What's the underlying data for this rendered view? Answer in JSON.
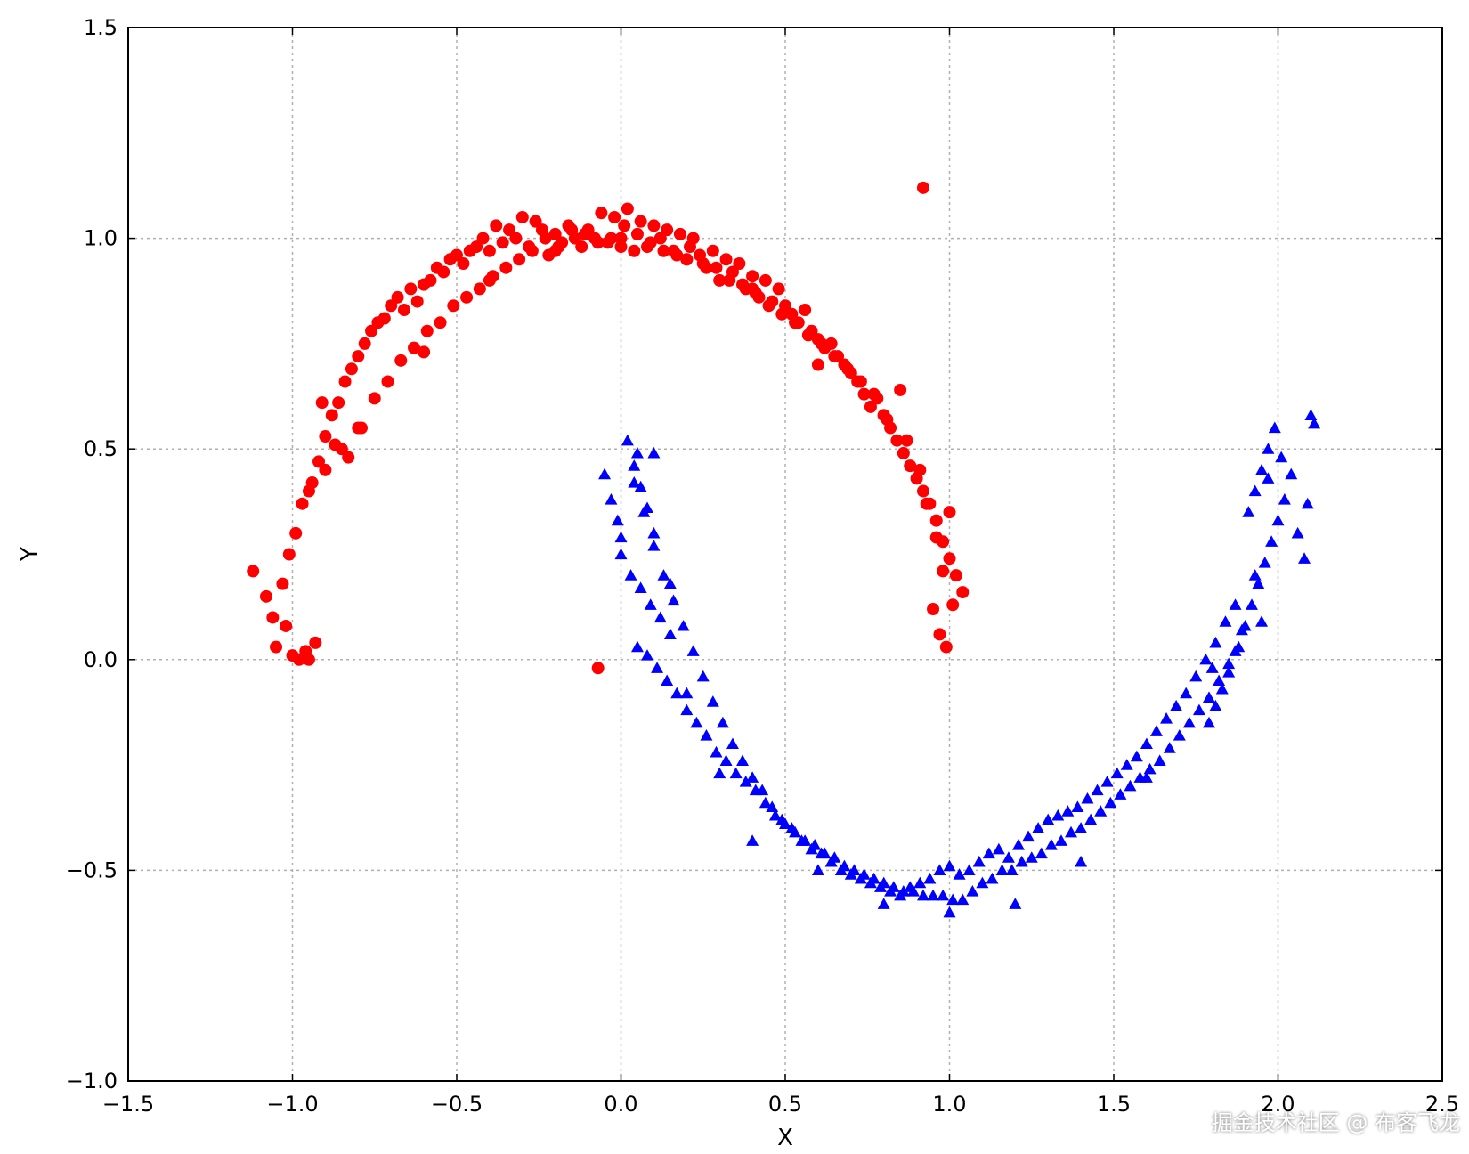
{
  "chart_data": {
    "type": "scatter",
    "xlabel": "X",
    "ylabel": "Y",
    "xlim": [
      -1.5,
      2.5
    ],
    "ylim": [
      -1.0,
      1.5
    ],
    "xticks": [
      -1.5,
      -1.0,
      -0.5,
      0.0,
      0.5,
      1.0,
      1.5,
      2.0,
      2.5
    ],
    "yticks": [
      -1.0,
      -0.5,
      0.0,
      0.5,
      1.0,
      1.5
    ],
    "xtick_labels": [
      "−1.5",
      "−1.0",
      "−0.5",
      "0.0",
      "0.5",
      "1.0",
      "1.5",
      "2.0",
      "2.5"
    ],
    "ytick_labels": [
      "−1.0",
      "−0.5",
      "0.0",
      "0.5",
      "1.0",
      "1.5"
    ],
    "grid": true,
    "series": [
      {
        "color": "#ff0000",
        "marker": "circle",
        "x": [
          -1.12,
          -1.08,
          -1.05,
          -1.02,
          -1.0,
          -0.98,
          -0.96,
          -0.95,
          -0.93,
          -1.06,
          -1.03,
          -1.01,
          -0.99,
          -0.97,
          -0.94,
          -0.92,
          -0.9,
          -0.88,
          -0.86,
          -0.84,
          -0.82,
          -0.8,
          -0.78,
          -0.76,
          -0.74,
          -0.72,
          -0.7,
          -0.68,
          -0.66,
          -0.64,
          -0.62,
          -0.6,
          -0.58,
          -0.56,
          -0.54,
          -0.52,
          -0.5,
          -0.48,
          -0.46,
          -0.44,
          -0.42,
          -0.4,
          -0.38,
          -0.36,
          -0.34,
          -0.32,
          -0.3,
          -0.28,
          -0.26,
          -0.24,
          -0.22,
          -0.2,
          -0.18,
          -0.16,
          -0.14,
          -0.12,
          -0.1,
          -0.08,
          -0.06,
          -0.04,
          -0.02,
          0.0,
          0.02,
          0.04,
          0.06,
          0.08,
          0.1,
          0.12,
          0.14,
          0.16,
          0.18,
          0.2,
          0.22,
          0.24,
          0.26,
          0.28,
          0.3,
          0.32,
          0.34,
          0.36,
          0.38,
          0.4,
          0.42,
          0.44,
          0.46,
          0.48,
          0.5,
          0.52,
          0.54,
          0.56,
          0.58,
          0.6,
          0.62,
          0.64,
          0.66,
          0.68,
          0.7,
          0.72,
          0.74,
          0.76,
          0.78,
          0.8,
          0.82,
          0.84,
          0.86,
          0.88,
          0.9,
          0.92,
          0.94,
          0.96,
          0.98,
          1.0,
          1.02,
          1.04,
          0.95,
          0.97,
          0.99,
          -0.07,
          0.92,
          0.85,
          -0.91,
          -0.87,
          -0.83,
          -0.79,
          -0.75,
          -0.71,
          -0.67,
          -0.63,
          -0.59,
          -0.55,
          -0.51,
          -0.47,
          -0.43,
          -0.39,
          -0.35,
          -0.31,
          -0.27,
          -0.23,
          -0.19,
          -0.15,
          -0.11,
          -0.07,
          -0.03,
          0.01,
          0.05,
          0.09,
          0.13,
          0.17,
          0.21,
          0.25,
          0.29,
          0.33,
          0.37,
          0.41,
          0.45,
          0.49,
          0.53,
          0.57,
          0.61,
          0.65,
          0.69,
          0.73,
          0.77,
          0.81,
          0.87,
          0.91,
          0.93,
          0.96,
          0.98,
          1.01,
          -0.95,
          -0.9,
          -0.85,
          -0.8,
          -0.6,
          -0.4,
          -0.2,
          0.0,
          0.2,
          0.4,
          0.6,
          0.8,
          1.0
        ],
        "y": [
          0.21,
          0.15,
          0.03,
          0.08,
          0.01,
          0.0,
          0.02,
          0.0,
          0.04,
          0.1,
          0.18,
          0.25,
          0.3,
          0.37,
          0.42,
          0.47,
          0.53,
          0.58,
          0.61,
          0.66,
          0.69,
          0.72,
          0.75,
          0.78,
          0.8,
          0.81,
          0.84,
          0.86,
          0.83,
          0.88,
          0.85,
          0.89,
          0.9,
          0.93,
          0.92,
          0.95,
          0.96,
          0.94,
          0.97,
          0.98,
          1.0,
          0.97,
          1.03,
          0.99,
          1.02,
          1.0,
          1.05,
          0.98,
          1.04,
          1.02,
          0.96,
          1.01,
          0.99,
          1.03,
          1.0,
          0.98,
          1.02,
          1.0,
          1.06,
          0.99,
          1.05,
          1.0,
          1.07,
          0.97,
          1.04,
          0.98,
          1.03,
          1.0,
          1.02,
          0.97,
          1.01,
          0.95,
          1.0,
          0.96,
          0.93,
          0.97,
          0.9,
          0.95,
          0.92,
          0.94,
          0.88,
          0.91,
          0.86,
          0.9,
          0.85,
          0.88,
          0.84,
          0.82,
          0.8,
          0.83,
          0.78,
          0.76,
          0.74,
          0.75,
          0.72,
          0.7,
          0.68,
          0.66,
          0.63,
          0.6,
          0.62,
          0.58,
          0.55,
          0.52,
          0.49,
          0.46,
          0.43,
          0.4,
          0.37,
          0.33,
          0.28,
          0.24,
          0.2,
          0.16,
          0.12,
          0.06,
          0.03,
          -0.02,
          1.12,
          0.64,
          0.61,
          0.51,
          0.48,
          0.55,
          0.62,
          0.66,
          0.71,
          0.74,
          0.78,
          0.8,
          0.84,
          0.86,
          0.88,
          0.91,
          0.93,
          0.95,
          0.97,
          1.0,
          0.98,
          1.02,
          1.01,
          0.99,
          1.0,
          1.03,
          1.01,
          0.99,
          0.97,
          0.96,
          0.98,
          0.94,
          0.93,
          0.9,
          0.89,
          0.87,
          0.84,
          0.82,
          0.8,
          0.77,
          0.75,
          0.72,
          0.69,
          0.66,
          0.63,
          0.57,
          0.52,
          0.45,
          0.37,
          0.29,
          0.21,
          0.13,
          0.4,
          0.45,
          0.5,
          0.55,
          0.73,
          0.9,
          0.97,
          0.98,
          0.95,
          0.88,
          0.7,
          0.58,
          0.35
        ]
      },
      {
        "color": "#0000ff",
        "marker": "triangle",
        "x": [
          -0.05,
          -0.03,
          -0.01,
          0.0,
          0.02,
          0.04,
          0.06,
          0.08,
          0.1,
          0.0,
          0.03,
          0.06,
          0.09,
          0.12,
          0.15,
          0.05,
          0.08,
          0.11,
          0.14,
          0.17,
          0.2,
          0.23,
          0.26,
          0.29,
          0.32,
          0.35,
          0.38,
          0.41,
          0.44,
          0.47,
          0.5,
          0.53,
          0.56,
          0.59,
          0.62,
          0.65,
          0.68,
          0.71,
          0.74,
          0.77,
          0.8,
          0.83,
          0.86,
          0.89,
          0.92,
          0.95,
          0.98,
          1.01,
          1.04,
          1.07,
          1.1,
          1.13,
          1.16,
          1.19,
          1.22,
          1.25,
          1.28,
          1.31,
          1.34,
          1.37,
          1.4,
          1.43,
          1.46,
          1.49,
          1.52,
          1.55,
          1.58,
          1.61,
          1.64,
          1.67,
          1.7,
          1.73,
          1.76,
          1.79,
          1.82,
          1.85,
          1.88,
          1.9,
          1.92,
          1.94,
          1.96,
          1.98,
          2.0,
          2.02,
          2.04,
          2.06,
          2.08,
          2.1,
          1.91,
          1.93,
          1.95,
          1.97,
          1.99,
          2.01,
          1.89,
          1.87,
          1.85,
          1.83,
          1.81,
          1.79,
          0.04,
          0.07,
          0.1,
          0.13,
          0.16,
          0.19,
          0.22,
          0.25,
          0.28,
          0.31,
          0.34,
          0.37,
          0.4,
          0.43,
          0.46,
          0.49,
          0.52,
          0.55,
          0.58,
          0.61,
          0.64,
          0.67,
          0.7,
          0.73,
          0.76,
          0.79,
          0.82,
          0.85,
          0.88,
          0.91,
          0.94,
          0.97,
          1.0,
          1.03,
          1.06,
          1.09,
          1.12,
          1.15,
          1.18,
          1.21,
          1.24,
          1.27,
          1.3,
          1.33,
          1.36,
          1.39,
          1.42,
          1.45,
          1.48,
          1.51,
          1.54,
          1.57,
          1.6,
          1.63,
          1.66,
          1.69,
          1.72,
          1.75,
          1.78,
          1.81,
          1.84,
          1.87,
          2.11,
          2.09,
          1.95,
          0.05,
          0.1,
          0.15,
          0.2,
          0.3,
          0.4,
          0.6,
          0.8,
          1.0,
          1.2,
          1.4,
          1.6,
          1.8,
          1.93,
          1.97
        ],
        "y": [
          0.44,
          0.38,
          0.33,
          0.29,
          0.52,
          0.46,
          0.41,
          0.36,
          0.49,
          0.25,
          0.2,
          0.17,
          0.13,
          0.1,
          0.06,
          0.03,
          0.01,
          -0.02,
          -0.05,
          -0.08,
          -0.12,
          -0.15,
          -0.18,
          -0.22,
          -0.24,
          -0.27,
          -0.29,
          -0.31,
          -0.34,
          -0.37,
          -0.39,
          -0.41,
          -0.43,
          -0.44,
          -0.46,
          -0.47,
          -0.49,
          -0.5,
          -0.51,
          -0.52,
          -0.53,
          -0.54,
          -0.55,
          -0.55,
          -0.56,
          -0.56,
          -0.56,
          -0.57,
          -0.57,
          -0.55,
          -0.53,
          -0.52,
          -0.5,
          -0.5,
          -0.48,
          -0.47,
          -0.46,
          -0.44,
          -0.43,
          -0.41,
          -0.4,
          -0.38,
          -0.36,
          -0.34,
          -0.32,
          -0.3,
          -0.28,
          -0.26,
          -0.24,
          -0.21,
          -0.18,
          -0.15,
          -0.12,
          -0.09,
          -0.05,
          -0.01,
          0.03,
          0.08,
          0.13,
          0.18,
          0.23,
          0.28,
          0.33,
          0.38,
          0.44,
          0.3,
          0.24,
          0.58,
          0.35,
          0.4,
          0.45,
          0.5,
          0.55,
          0.48,
          0.07,
          0.02,
          -0.03,
          -0.07,
          -0.11,
          -0.15,
          0.42,
          0.35,
          0.27,
          0.2,
          0.14,
          0.08,
          0.02,
          -0.04,
          -0.1,
          -0.15,
          -0.2,
          -0.24,
          -0.28,
          -0.31,
          -0.35,
          -0.38,
          -0.4,
          -0.43,
          -0.45,
          -0.46,
          -0.48,
          -0.5,
          -0.51,
          -0.52,
          -0.53,
          -0.54,
          -0.55,
          -0.56,
          -0.54,
          -0.53,
          -0.52,
          -0.5,
          -0.49,
          -0.51,
          -0.5,
          -0.48,
          -0.46,
          -0.45,
          -0.47,
          -0.44,
          -0.42,
          -0.4,
          -0.38,
          -0.37,
          -0.36,
          -0.35,
          -0.33,
          -0.31,
          -0.29,
          -0.27,
          -0.25,
          -0.23,
          -0.2,
          -0.17,
          -0.14,
          -0.11,
          -0.08,
          -0.04,
          0.0,
          0.04,
          0.09,
          0.13,
          0.56,
          0.37,
          0.09,
          0.49,
          0.3,
          0.18,
          -0.08,
          -0.27,
          -0.43,
          -0.5,
          -0.58,
          -0.6,
          -0.58,
          -0.48,
          -0.28,
          -0.02,
          0.2,
          0.43
        ]
      }
    ]
  },
  "watermark": "掘金技术社区 @ 布客飞龙"
}
